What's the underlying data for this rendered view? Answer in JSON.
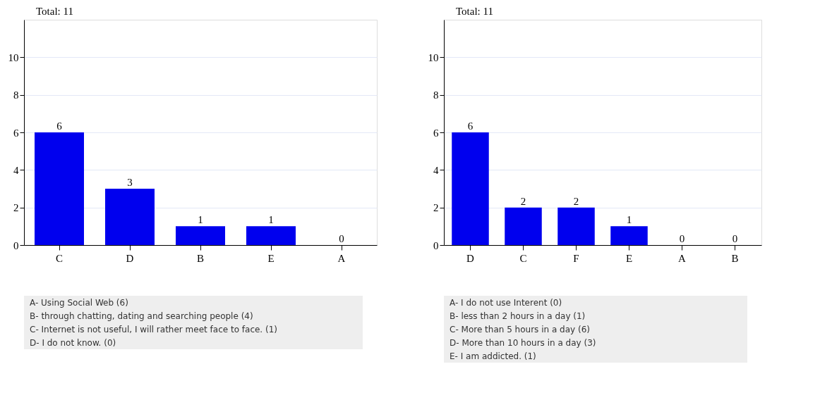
{
  "chart_data": [
    {
      "type": "bar",
      "title": "Total: 11",
      "categories": [
        "C",
        "D",
        "B",
        "E",
        "A"
      ],
      "values": [
        6,
        3,
        1,
        1,
        0
      ],
      "color": "#0000ee",
      "ylim": [
        0,
        12
      ],
      "yticks": [
        0,
        2,
        4,
        6,
        8,
        10
      ],
      "grid": "y",
      "data_labels": true,
      "annotations": [
        "A-   Using Social Web (6)",
        "B-   through chatting, dating and searching people (4)",
        "C-   Internet is not useful, I will rather meet face to face. (1)",
        "D-   I do not know. (0)"
      ]
    },
    {
      "type": "bar",
      "title": "Total: 11",
      "categories": [
        "D",
        "C",
        "F",
        "E",
        "A",
        "B"
      ],
      "values": [
        6,
        2,
        2,
        1,
        0,
        0
      ],
      "color": "#0000ee",
      "ylim": [
        0,
        12
      ],
      "yticks": [
        0,
        2,
        4,
        6,
        8,
        10
      ],
      "grid": "y",
      "data_labels": true,
      "annotations": [
        "A-   I do not use Interent (0)",
        "B-   less than 2 hours in a day (1)",
        "C-   More than 5 hours in a day (6)",
        "D-   More than 10 hours in a day (3)",
        "E-   I am addicted. (1)"
      ]
    }
  ]
}
